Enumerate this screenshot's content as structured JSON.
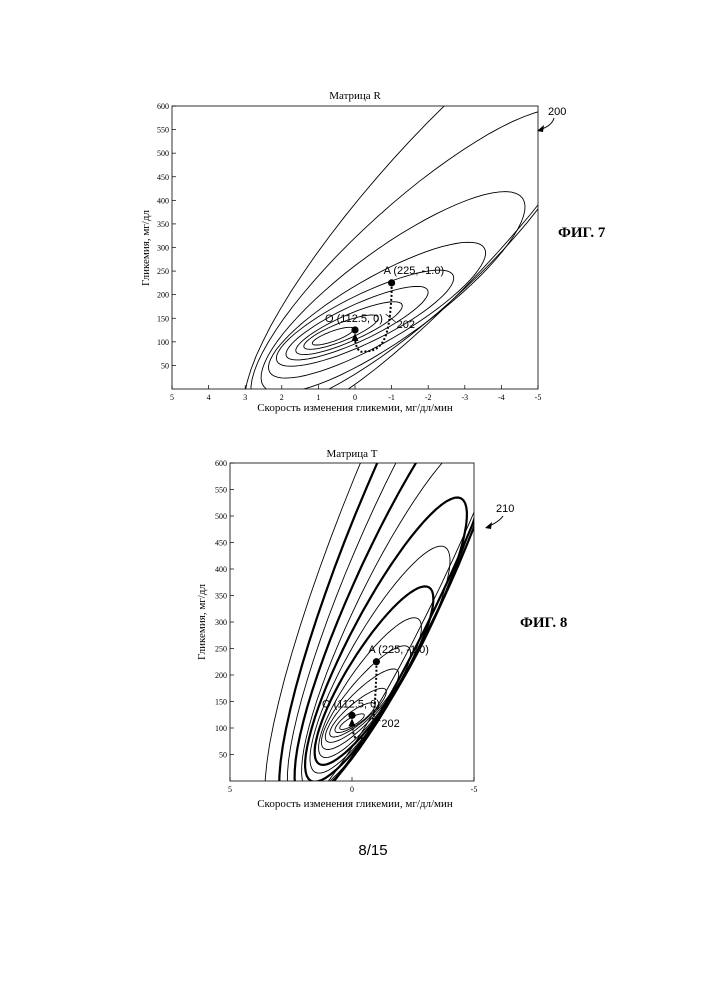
{
  "chart_data": [
    {
      "type": "contour",
      "title": "Матрица R",
      "xlabel": "Скорость изменения гликемии, мг/дл/мин",
      "ylabel": "Гликемия, мг/дл",
      "xlim": [
        5,
        -5
      ],
      "ylim": [
        0,
        600
      ],
      "xticks": [
        "5",
        "4",
        "3",
        "2",
        "1",
        "0",
        "-1",
        "-2",
        "-3",
        "-4",
        "-5"
      ],
      "yticks": [
        "50",
        "100",
        "150",
        "200",
        "250",
        "300",
        "350",
        "400",
        "450",
        "500",
        "550",
        "600"
      ],
      "center": [
        0.6,
        112
      ],
      "points": [
        {
          "name": "A",
          "label": "A (225, -1.0)",
          "x": -1.0,
          "y": 225
        },
        {
          "name": "O",
          "label": "O (112.5, 0)",
          "x": 0,
          "y": 112.5
        }
      ],
      "ref_label": "202",
      "figure_label": "ФИГ. 7",
      "figure_ref": "200"
    },
    {
      "type": "contour",
      "title": "Матрица T",
      "xlabel": "Скорость изменения гликемии, мг/дл/мин",
      "ylabel": "Гликемия, мг/дл",
      "xlim": [
        5,
        -5
      ],
      "ylim": [
        0,
        600
      ],
      "xticks": [
        "5",
        "0",
        "-5"
      ],
      "yticks": [
        "50",
        "100",
        "150",
        "200",
        "250",
        "300",
        "350",
        "400",
        "450",
        "500",
        "550",
        "600"
      ],
      "center": [
        0,
        112
      ],
      "points": [
        {
          "name": "A",
          "label": "A (225, -1.0)",
          "x": -1.0,
          "y": 225
        },
        {
          "name": "O",
          "label": "O (112.5, 0)",
          "x": 0,
          "y": 112.5
        }
      ],
      "ref_label": "202",
      "figure_label": "ФИГ. 8",
      "figure_ref": "210"
    }
  ],
  "page_number": "8/15",
  "style": {
    "ink": "#000000",
    "paper": "#ffffff"
  }
}
